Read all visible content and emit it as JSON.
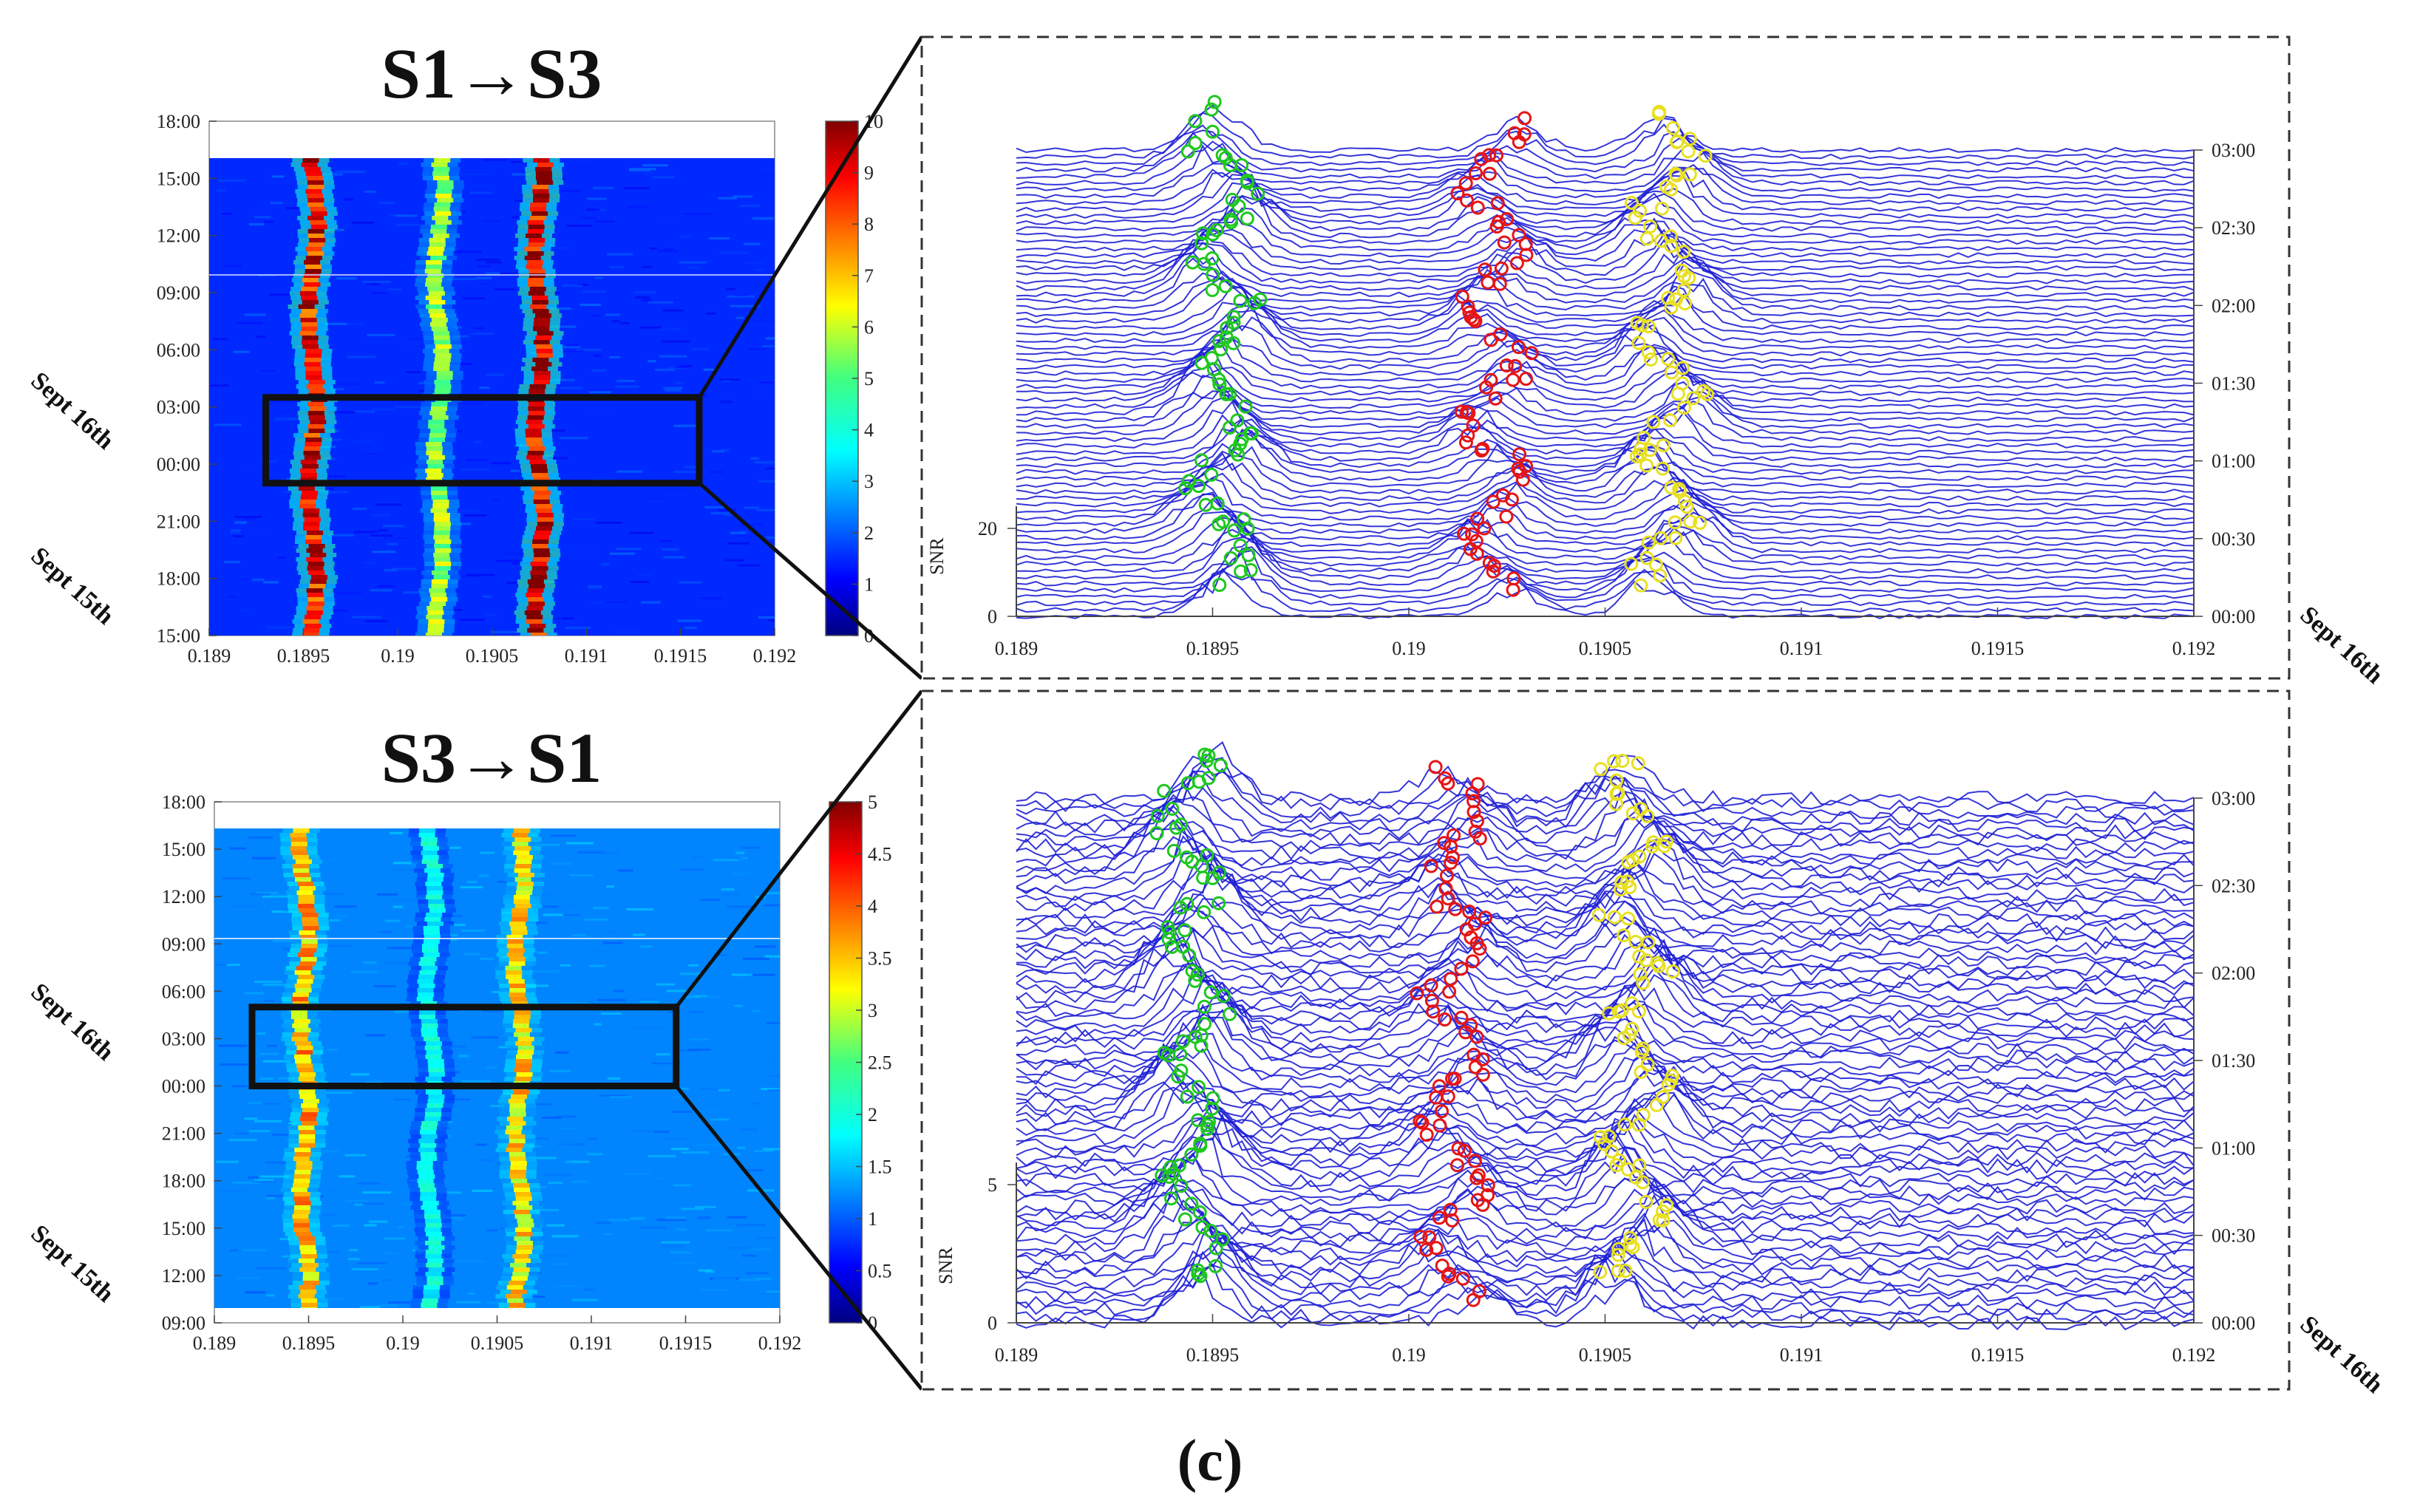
{
  "figure": {
    "caption": "(c)"
  },
  "colors": {
    "blue": "#1f1fd6",
    "green": "#1ec81e",
    "red": "#e61414",
    "yellow": "#e8e020"
  },
  "chart_data": [
    {
      "id": "heatmap-s1s3",
      "type": "heatmap",
      "title": "S1→S3",
      "xlim": [
        0.189,
        0.192
      ],
      "x_ticks": [
        "0.189",
        "0.1895",
        "0.19",
        "0.1905",
        "0.191",
        "0.1915",
        "0.192"
      ],
      "y_ticks": [
        "15:00",
        "18:00",
        "21:00",
        "00:00",
        "03:00",
        "06:00",
        "09:00",
        "12:00",
        "15:00",
        "18:00"
      ],
      "date_labels": [
        "Sept 16th",
        "Sept 15th"
      ],
      "colorbar": {
        "min": 0,
        "max": 10,
        "ticks": [
          "0",
          "1",
          "2",
          "3",
          "4",
          "5",
          "6",
          "7",
          "8",
          "9",
          "10"
        ]
      },
      "bands_x": [
        0.18955,
        0.19022,
        0.19075
      ],
      "band_intensity": [
        9.5,
        6.0,
        10.0
      ],
      "background_level": 1.5,
      "data_time_range": [
        "15:00",
        "16:00"
      ],
      "zoom_box": {
        "x": [
          0.1893,
          0.1916
        ],
        "time": [
          "23:00",
          "03:30"
        ]
      }
    },
    {
      "id": "heatmap-s3s1",
      "type": "heatmap",
      "title": "S3→S1",
      "xlim": [
        0.189,
        0.192
      ],
      "x_ticks": [
        "0.189",
        "0.1895",
        "0.19",
        "0.1905",
        "0.191",
        "0.1915",
        "0.192"
      ],
      "y_ticks": [
        "09:00",
        "12:00",
        "15:00",
        "18:00",
        "21:00",
        "00:00",
        "03:00",
        "06:00",
        "09:00",
        "12:00",
        "15:00",
        "18:00"
      ],
      "date_labels": [
        "Sept 16th",
        "Sept 15th"
      ],
      "colorbar": {
        "min": 0,
        "max": 5,
        "ticks": [
          "0",
          "0.5",
          "1",
          "1.5",
          "2",
          "2.5",
          "3",
          "3.5",
          "4",
          "4.5",
          "5"
        ]
      },
      "bands_x": [
        0.18948,
        0.19015,
        0.19062
      ],
      "band_intensity": [
        3.8,
        2.0,
        3.6
      ],
      "background_level": 1.2,
      "data_time_range": [
        "10:00",
        "16:00"
      ],
      "zoom_box": {
        "x": [
          0.1892,
          0.19145
        ],
        "time": [
          "00:00",
          "05:00"
        ]
      }
    },
    {
      "id": "waterfall-s1s3",
      "type": "line",
      "xlim": [
        0.189,
        0.192
      ],
      "x_ticks": [
        "0.189",
        "0.1895",
        "0.19",
        "0.1905",
        "0.191",
        "0.1915",
        "0.192"
      ],
      "ylabel": "SNR",
      "y_ticks": [
        "0",
        "20"
      ],
      "time_ticks": [
        "00:00",
        "00:30",
        "01:00",
        "01:30",
        "02:00",
        "02:30",
        "03:00"
      ],
      "date_label": "Sept 16th",
      "n_traces": 72,
      "snr_baseline": 0,
      "peaks": [
        {
          "x": 0.18953,
          "height": 22,
          "marker_color": "green"
        },
        {
          "x": 0.19022,
          "height": 15,
          "marker_color": "red"
        },
        {
          "x": 0.19066,
          "height": 20,
          "marker_color": "yellow"
        }
      ]
    },
    {
      "id": "waterfall-s3s1",
      "type": "line",
      "xlim": [
        0.189,
        0.192
      ],
      "x_ticks": [
        "0.189",
        "0.1895",
        "0.19",
        "0.1905",
        "0.191",
        "0.1915",
        "0.192"
      ],
      "ylabel": "SNR",
      "y_ticks": [
        "0",
        "5"
      ],
      "time_ticks": [
        "00:00",
        "00:30",
        "01:00",
        "01:30",
        "02:00",
        "02:30",
        "03:00"
      ],
      "date_label": "Sept 16th",
      "n_traces": 78,
      "snr_baseline": 1,
      "peaks": [
        {
          "x": 0.18945,
          "height": 4.2,
          "marker_color": "green"
        },
        {
          "x": 0.19012,
          "height": 2.5,
          "marker_color": "red"
        },
        {
          "x": 0.19058,
          "height": 3.8,
          "marker_color": "yellow"
        }
      ]
    }
  ]
}
